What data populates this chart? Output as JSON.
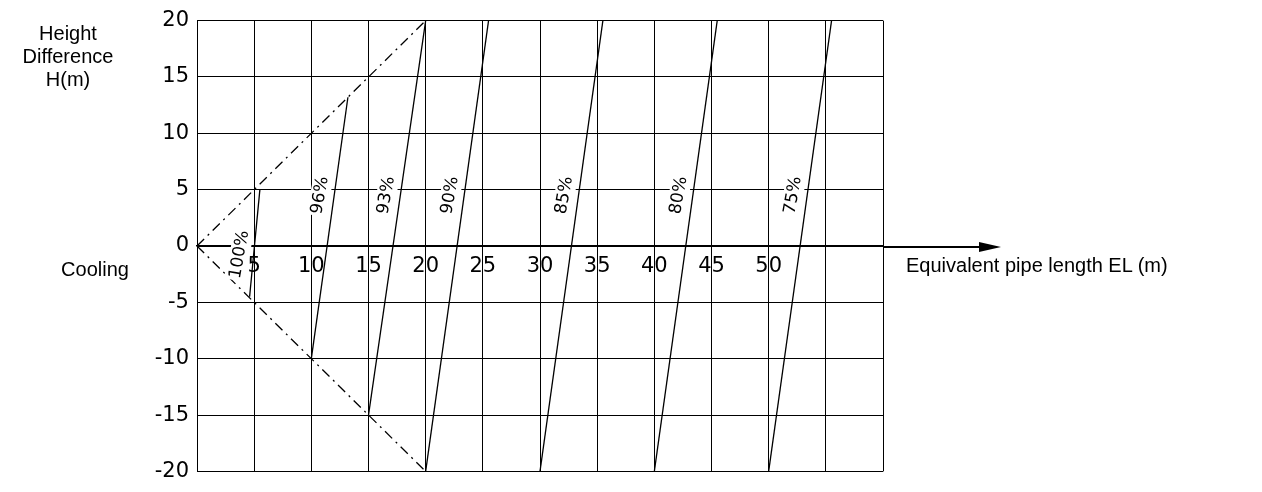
{
  "chart_data": {
    "type": "line",
    "ylabel": "Height Difference H(m)",
    "xlabel": "Equivalent pipe length EL (m)",
    "xlim": [
      0,
      60
    ],
    "ylim": [
      -20,
      20
    ],
    "xticks": [
      {
        "value": 0,
        "label": null
      },
      5,
      10,
      15,
      20,
      25,
      30,
      35,
      40,
      45,
      50,
      {
        "value": 55,
        "label": null
      },
      {
        "value": 60,
        "label": null
      }
    ],
    "yticks": [
      -20,
      -15,
      -10,
      -5,
      0,
      5,
      10,
      15,
      20
    ],
    "grid": true,
    "marker": "none",
    "series": [
      {
        "color": "#000000",
        "line_style": "dashed",
        "x": [
          0,
          20
        ],
        "values": [
          0,
          20
        ]
      },
      {
        "color": "#000000",
        "line_style": "dashed",
        "x": [
          0,
          20
        ],
        "values": [
          0,
          -20
        ]
      },
      {
        "name": "100%",
        "color": "#000000",
        "line_style": "solid",
        "x": [
          4.6,
          5.5
        ],
        "values": [
          -4.5,
          5
        ]
      },
      {
        "name": "96%",
        "color": "#000000",
        "line_style": "solid",
        "x": [
          10,
          13.2
        ],
        "values": [
          -10,
          13.2
        ]
      },
      {
        "name": "93%",
        "color": "#000000",
        "line_style": "solid",
        "x": [
          15,
          20
        ],
        "values": [
          -15,
          20
        ]
      },
      {
        "name": "90%",
        "color": "#000000",
        "line_style": "solid",
        "x": [
          20,
          25.5
        ],
        "values": [
          -20,
          20
        ]
      },
      {
        "name": "85%",
        "color": "#000000",
        "line_style": "solid",
        "x": [
          30,
          35.5
        ],
        "values": [
          -20,
          20
        ]
      },
      {
        "name": "80%",
        "color": "#000000",
        "line_style": "solid",
        "x": [
          40,
          45.5
        ],
        "values": [
          -20,
          20
        ]
      },
      {
        "name": "75%",
        "color": "#000000",
        "line_style": "solid",
        "x": [
          50,
          55.5
        ],
        "values": [
          -20,
          20
        ]
      }
    ],
    "annotations": [
      "Cooling"
    ]
  }
}
